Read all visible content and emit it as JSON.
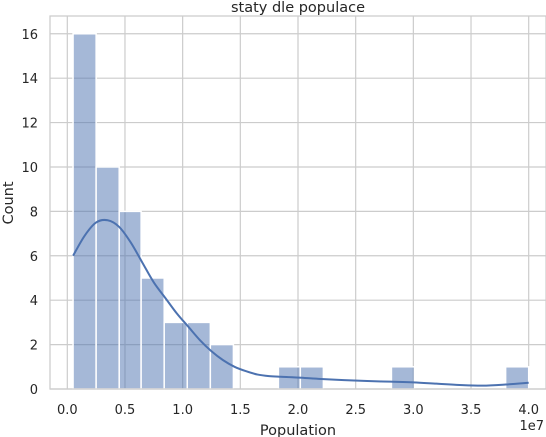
{
  "chart_data": {
    "type": "bar",
    "subtype": "histogram-with-kde",
    "title": "staty dle populace",
    "xlabel": "Population",
    "ylabel": "Count",
    "x_offset_label": "1e7",
    "xlim": [
      -0.15,
      4.15
    ],
    "ylim": [
      0,
      16.8
    ],
    "x_ticks": [
      0.0,
      0.5,
      1.0,
      1.5,
      2.0,
      2.5,
      3.0,
      3.5,
      4.0
    ],
    "x_tick_labels": [
      "0.0",
      "0.5",
      "1.0",
      "1.5",
      "2.0",
      "2.5",
      "3.0",
      "3.5",
      "4.0"
    ],
    "y_ticks": [
      0,
      2,
      4,
      6,
      8,
      10,
      12,
      14,
      16
    ],
    "y_tick_labels": [
      "0",
      "2",
      "4",
      "6",
      "8",
      "10",
      "12",
      "14",
      "16"
    ],
    "grid": true,
    "bar_color": "#4c72b0",
    "bins": [
      {
        "x0": 0.05,
        "x1": 0.25,
        "count": 16
      },
      {
        "x0": 0.25,
        "x1": 0.45,
        "count": 10
      },
      {
        "x0": 0.45,
        "x1": 0.64,
        "count": 8
      },
      {
        "x0": 0.64,
        "x1": 0.84,
        "count": 5
      },
      {
        "x0": 0.84,
        "x1": 1.04,
        "count": 3
      },
      {
        "x0": 1.04,
        "x1": 1.24,
        "count": 3
      },
      {
        "x0": 1.24,
        "x1": 1.44,
        "count": 2
      },
      {
        "x0": 1.83,
        "x1": 2.02,
        "count": 1
      },
      {
        "x0": 2.02,
        "x1": 2.22,
        "count": 1
      },
      {
        "x0": 2.81,
        "x1": 3.01,
        "count": 1
      },
      {
        "x0": 3.8,
        "x1": 4.0,
        "count": 1
      }
    ],
    "kde": {
      "x": [
        0.05,
        0.15,
        0.25,
        0.35,
        0.45,
        0.55,
        0.65,
        0.75,
        0.85,
        0.95,
        1.05,
        1.15,
        1.25,
        1.35,
        1.45,
        1.55,
        1.65,
        1.75,
        1.85,
        1.95,
        2.05,
        2.2,
        2.4,
        2.6,
        2.8,
        3.0,
        3.2,
        3.4,
        3.6,
        3.8,
        4.0
      ],
      "y": [
        6.0,
        6.9,
        7.5,
        7.6,
        7.3,
        6.6,
        5.7,
        4.8,
        4.1,
        3.4,
        2.8,
        2.2,
        1.7,
        1.3,
        1.0,
        0.8,
        0.65,
        0.58,
        0.55,
        0.53,
        0.5,
        0.45,
        0.4,
        0.36,
        0.33,
        0.3,
        0.24,
        0.18,
        0.15,
        0.2,
        0.28
      ]
    },
    "kde_color": "#4c72b0"
  }
}
